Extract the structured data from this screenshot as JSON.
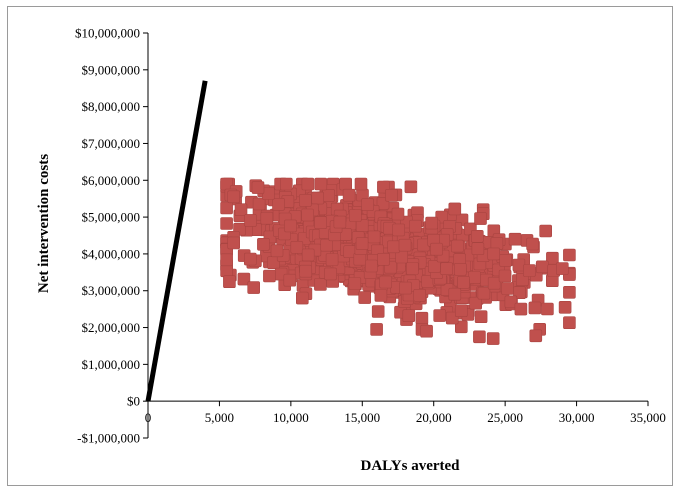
{
  "chart_data": {
    "type": "scatter",
    "title": "",
    "xlabel": "DALYs averted",
    "ylabel": "Net intervention costs",
    "xlim": [
      0,
      35000
    ],
    "ylim": [
      -1000000,
      10000000
    ],
    "x_ticks": [
      0,
      5000,
      10000,
      15000,
      20000,
      25000,
      30000,
      35000
    ],
    "x_tick_labels": [
      "0",
      "5,000",
      "10,000",
      "15,000",
      "20,000",
      "25,000",
      "30,000",
      "35,000"
    ],
    "y_ticks": [
      -1000000,
      0,
      1000000,
      2000000,
      3000000,
      4000000,
      5000000,
      6000000,
      7000000,
      8000000,
      9000000,
      10000000
    ],
    "y_tick_labels": [
      "-$1,000,000",
      "$0",
      "$1,000,000",
      "$2,000,000",
      "$3,000,000",
      "$4,000,000",
      "$5,000,000",
      "$6,000,000",
      "$7,000,000",
      "$8,000,000",
      "$9,000,000",
      "$10,000,000"
    ],
    "grid": false,
    "legend": "none",
    "threshold_line": {
      "x": [
        0,
        4000
      ],
      "y": [
        0,
        8700000
      ],
      "color": "#000000"
    },
    "point_color": "#c0504d",
    "scatter_cloud": {
      "n_points": 1000,
      "x_mean": 16000,
      "x_sd": 4800,
      "x_range": [
        5500,
        29500
      ],
      "y_mean": 4100000,
      "y_sd": 750000,
      "y_range": [
        1700000,
        5900000
      ],
      "correlation": -0.45
    },
    "outlier_points": [
      {
        "x": 5800,
        "y": 5600000
      },
      {
        "x": 6000,
        "y": 5550000
      },
      {
        "x": 6000,
        "y": 4300000
      },
      {
        "x": 7700,
        "y": 5800000
      },
      {
        "x": 25700,
        "y": 4400000
      },
      {
        "x": 24200,
        "y": 4000000
      },
      {
        "x": 25000,
        "y": 3400000
      },
      {
        "x": 26200,
        "y": 3300000
      },
      {
        "x": 26700,
        "y": 3550000
      },
      {
        "x": 27600,
        "y": 3650000
      },
      {
        "x": 28400,
        "y": 3550000
      },
      {
        "x": 29000,
        "y": 3600000
      },
      {
        "x": 29200,
        "y": 2550000
      },
      {
        "x": 25400,
        "y": 2700000
      },
      {
        "x": 26100,
        "y": 2500000
      },
      {
        "x": 23200,
        "y": 1750000
      },
      {
        "x": 16000,
        "y": 1950000
      },
      {
        "x": 19500,
        "y": 1900000
      },
      {
        "x": 10800,
        "y": 2800000
      },
      {
        "x": 8500,
        "y": 3400000
      }
    ]
  }
}
